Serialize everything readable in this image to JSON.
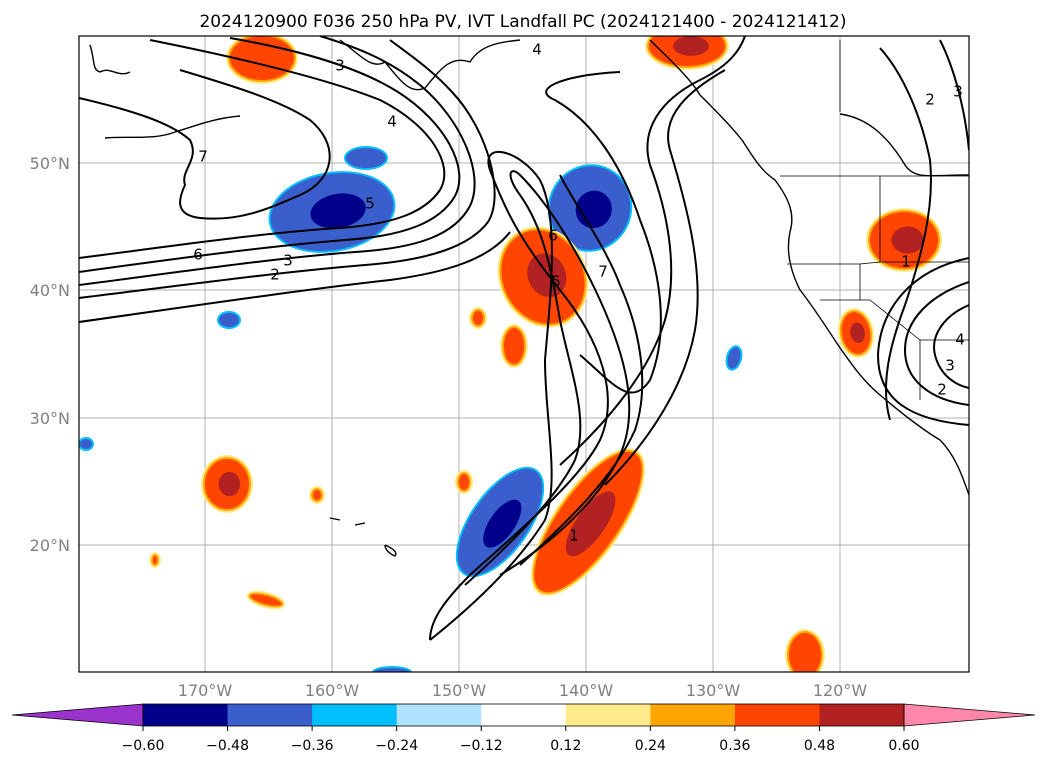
{
  "title": "2024120900 F036 250 hPa PV, IVT Landfall PC (2024121400 - 2024121412)",
  "lat_labels": [
    "50°N",
    "40°N",
    "30°N",
    "20°N"
  ],
  "lon_labels": [
    "170°W",
    "160°W",
    "150°W",
    "140°W",
    "130°W",
    "120°W"
  ],
  "contour_labels": [
    "4",
    "3",
    "4",
    "7",
    "5",
    "6",
    "3",
    "2",
    "6",
    "5",
    "7",
    "1",
    "2",
    "3",
    "4",
    "3",
    "2",
    "1"
  ],
  "colorbar": {
    "ticks": [
      "−0.60",
      "−0.48",
      "−0.36",
      "−0.24",
      "−0.12",
      "0.12",
      "0.24",
      "0.36",
      "0.48",
      "0.60"
    ],
    "colors": [
      "#9933cc",
      "#00008b",
      "#3a5fcd",
      "#00bfff",
      "#b0e2ff",
      "#ffffff",
      "#ffea8c",
      "#ffa500",
      "#ff4500",
      "#b22222",
      "#ff88aa"
    ]
  },
  "colors": {
    "neg_strong": "#00008b",
    "neg_mid": "#3a5fcd",
    "neg_weak": "#00bfff",
    "pos_weak": "#ffa500",
    "pos_mid": "#ff4500",
    "pos_strong": "#b22222",
    "pos_edge": "#ffea8c"
  }
}
